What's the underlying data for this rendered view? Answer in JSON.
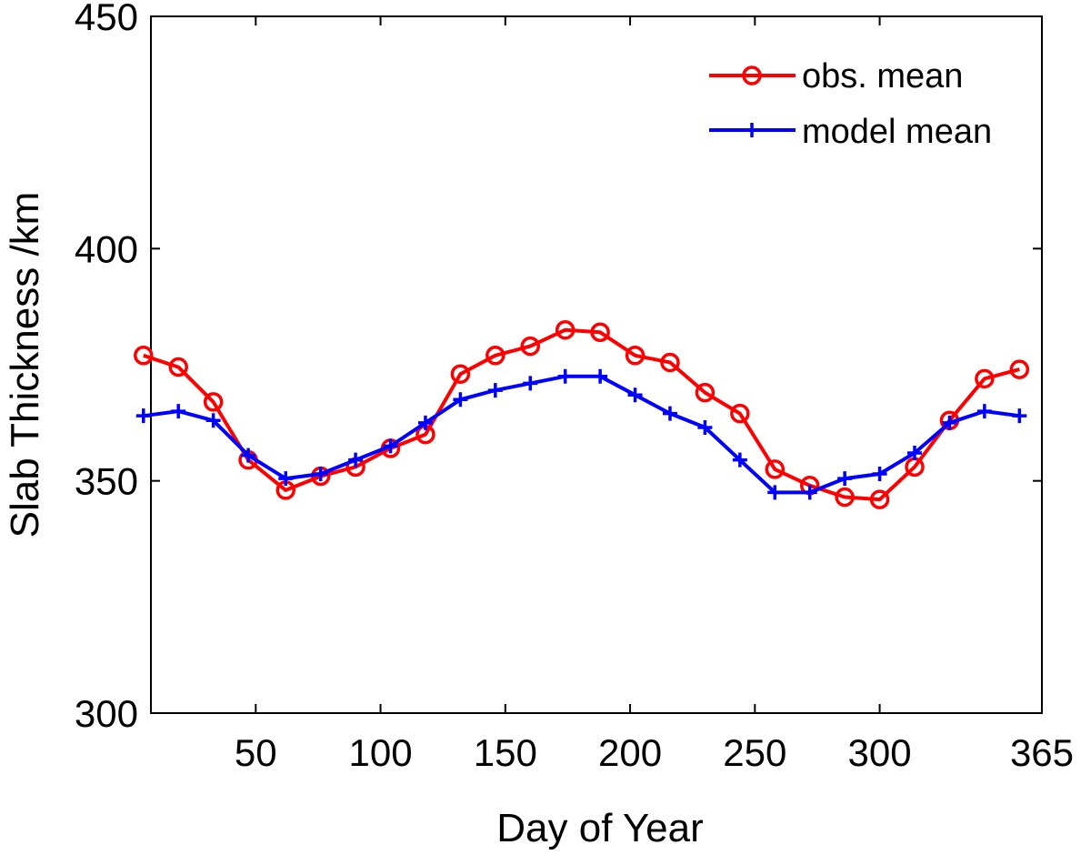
{
  "chart_data": {
    "type": "line",
    "xlabel": "Day of Year",
    "ylabel": "Slab Thickness /km",
    "xlim": [
      8,
      365
    ],
    "ylim": [
      300,
      450
    ],
    "xticks": [
      50,
      100,
      150,
      200,
      250,
      300,
      365
    ],
    "xtick_labels": [
      "50",
      "100",
      "150",
      "200",
      "250",
      "300",
      "365"
    ],
    "yticks": [
      300,
      350,
      400,
      450
    ],
    "ytick_labels": [
      "300",
      "350",
      "400",
      "450"
    ],
    "legend_position": "top-right",
    "x": [
      13,
      28,
      43,
      58,
      73,
      88,
      103,
      118,
      133,
      148,
      163,
      178,
      193,
      208,
      223,
      238,
      253,
      268,
      283,
      298,
      313,
      328,
      343,
      358,
      363
    ],
    "series": [
      {
        "name": "obs. mean",
        "color": "#ff0000",
        "marker": "circle",
        "x": [
          5,
          19,
          33,
          47,
          62,
          76,
          90,
          104,
          118,
          132,
          146,
          160,
          174,
          188,
          202,
          216,
          230,
          244,
          258,
          272,
          286,
          300,
          314,
          328,
          342,
          356
        ],
        "values": [
          377,
          374.5,
          367,
          354.5,
          348,
          351,
          353,
          357,
          360,
          373,
          377,
          379,
          382.5,
          382,
          377,
          375.5,
          369,
          364.5,
          352.5,
          349,
          346.5,
          346,
          353,
          363,
          372,
          374
        ]
      },
      {
        "name": "model mean",
        "color": "#0000ff",
        "marker": "plus",
        "x": [
          5,
          19,
          33,
          47,
          62,
          76,
          90,
          104,
          118,
          132,
          146,
          160,
          174,
          188,
          202,
          216,
          230,
          244,
          258,
          272,
          286,
          300,
          314,
          328,
          342,
          356
        ],
        "values": [
          364,
          365,
          363,
          355.5,
          350.5,
          351.5,
          354.5,
          357.5,
          362.5,
          367.5,
          369.5,
          371,
          372.5,
          372.5,
          368.5,
          364.5,
          361.5,
          354.5,
          347.5,
          347.5,
          350.5,
          351.5,
          356,
          362.5,
          365,
          364
        ]
      }
    ]
  }
}
